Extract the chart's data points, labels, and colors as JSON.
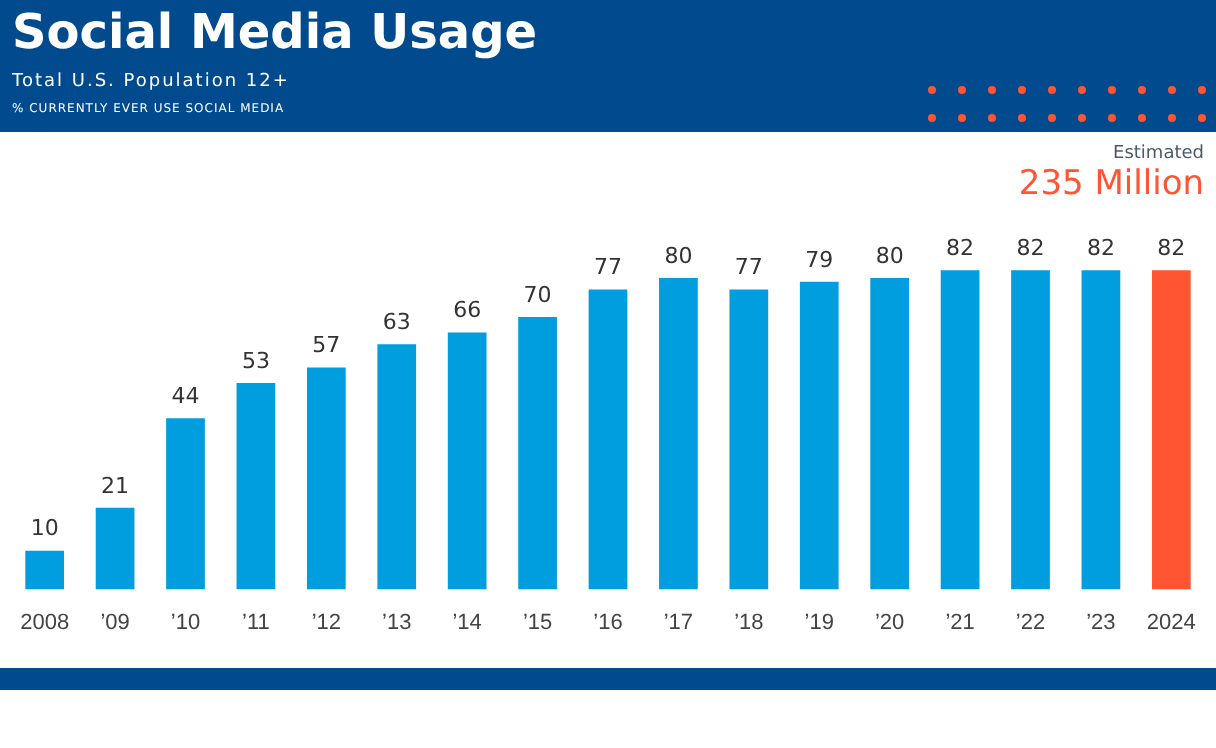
{
  "chart_data": {
    "type": "bar",
    "title": "Social Media Usage",
    "subtitle": "Total U.S. Population 12+",
    "annotations": [
      "% CURRENTLY EVER USE SOCIAL MEDIA",
      "Estimated",
      "235 Million"
    ],
    "categories": [
      "2008",
      "’09",
      "’10",
      "’11",
      "’12",
      "’13",
      "’14",
      "’15",
      "’16",
      "’17",
      "’18",
      "’19",
      "’20",
      "’21",
      "’22",
      "’23",
      "2024"
    ],
    "values": [
      10,
      21,
      44,
      53,
      57,
      63,
      66,
      70,
      77,
      80,
      77,
      79,
      80,
      82,
      82,
      82,
      82
    ],
    "colors": [
      "#009ddf",
      "#009ddf",
      "#009ddf",
      "#009ddf",
      "#009ddf",
      "#009ddf",
      "#009ddf",
      "#009ddf",
      "#009ddf",
      "#009ddf",
      "#009ddf",
      "#009ddf",
      "#009ddf",
      "#009ddf",
      "#009ddf",
      "#009ddf",
      "#ff5533"
    ],
    "data_labels": true,
    "grid": false,
    "legend": false
  }
}
